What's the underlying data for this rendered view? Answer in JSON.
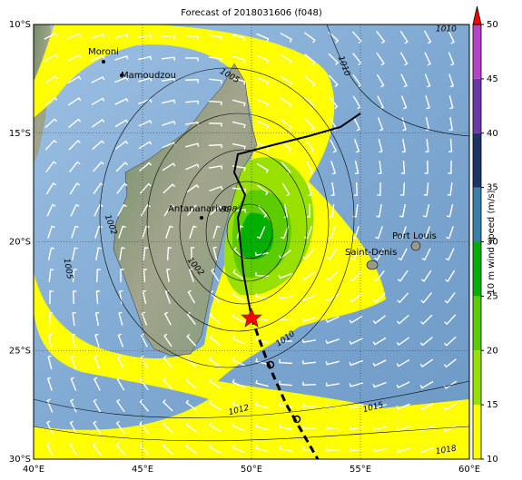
{
  "title": "Forecast of 2018031606 (f048)",
  "lat_labels": [
    "10°S",
    "15°S",
    "20°S",
    "25°S",
    "30°S"
  ],
  "lon_labels": [
    "40°E",
    "45°E",
    "50°E",
    "55°E",
    "60°E"
  ],
  "places": [
    "Moroni",
    "Mamoudzou",
    "Antananarivo",
    "Saint-Denis",
    "Port Louis"
  ],
  "isobar_labels": [
    "1010",
    "1010",
    "1005",
    "1002",
    "1002",
    "1005",
    "998",
    "1010",
    "1012",
    "1015",
    "1018"
  ],
  "colorbar": {
    "label": "10 m wind speed (m/s)",
    "ylim": [
      10,
      50
    ],
    "ticks": [
      10,
      15,
      20,
      25,
      30,
      35,
      40,
      45,
      50
    ],
    "colors": [
      "#ffff00",
      "#98e000",
      "#5ccc00",
      "#00b000",
      "#3b7fa8",
      "#1c3566",
      "#6a3aa8",
      "#b545c5"
    ],
    "extend_color": "#ff0000"
  }
}
